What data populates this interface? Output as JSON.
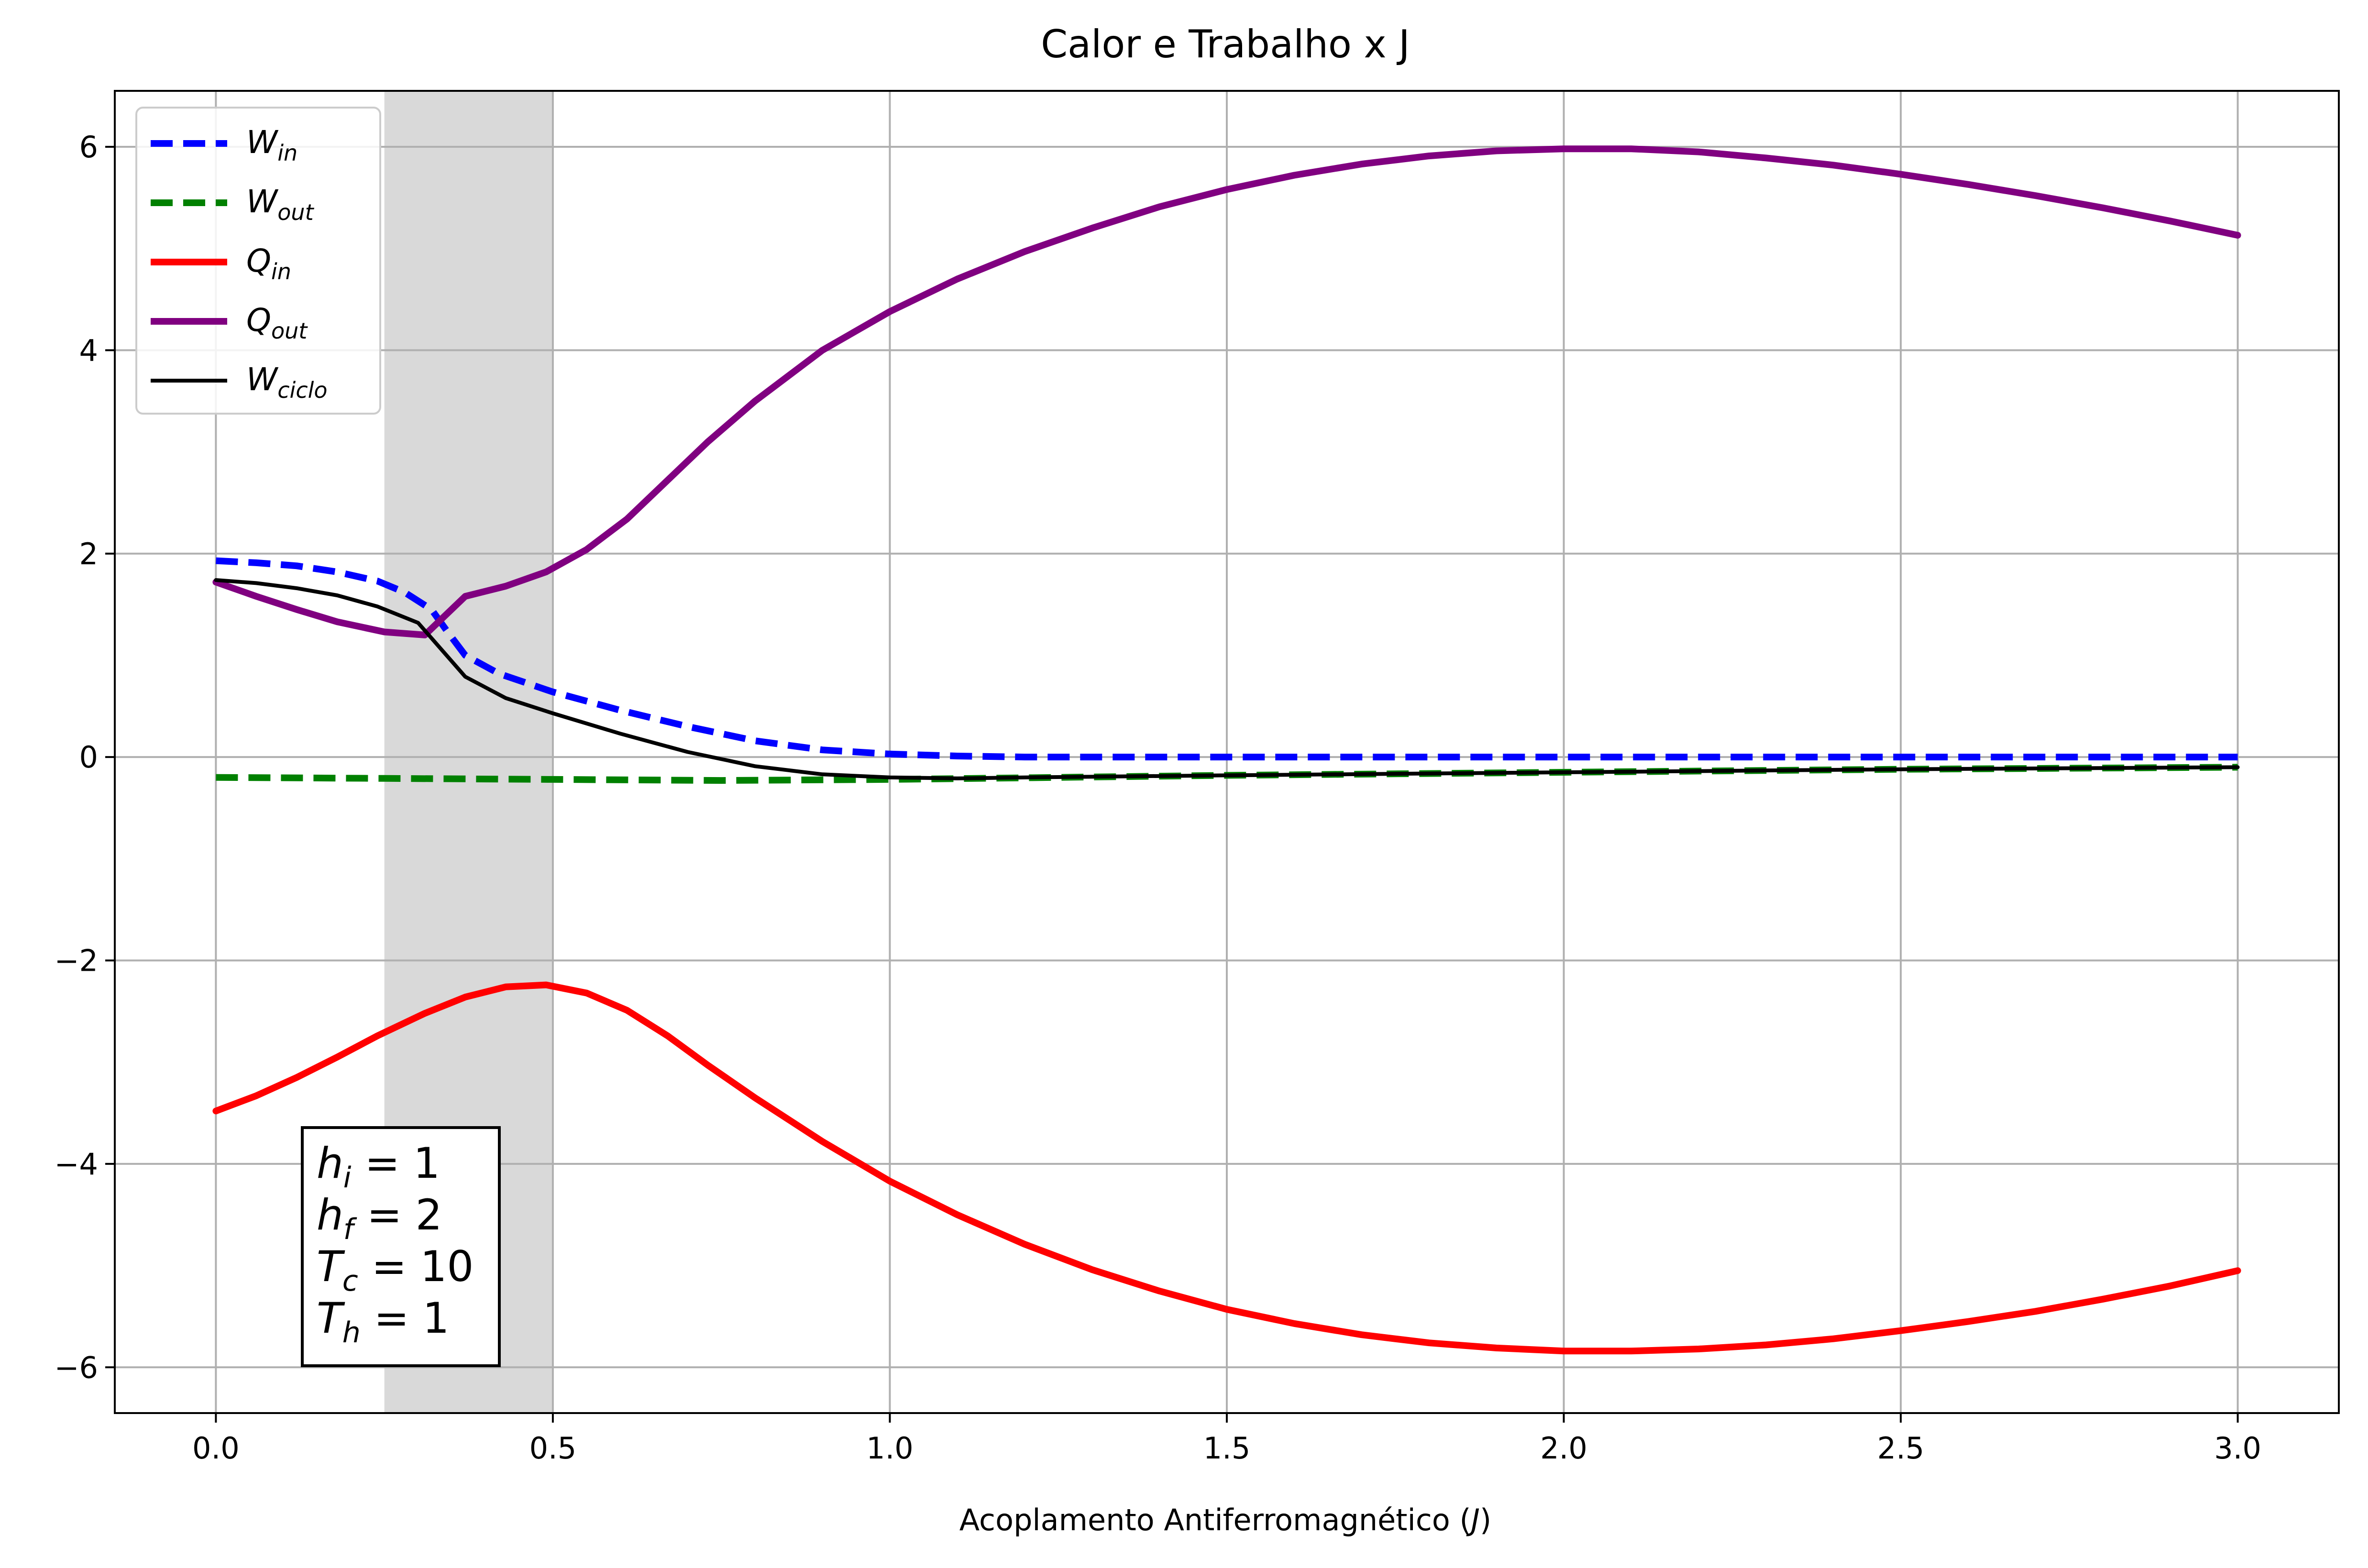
{
  "chart_data": {
    "type": "line",
    "title": "Calor e Trabalho x J",
    "xlabel": "Acoplamento Antiferromagnético (J)",
    "xlabel_parts": {
      "prefix": "Acoplamento Antiferromagnético (",
      "var": "J",
      "suffix": ")"
    },
    "ylabel": "",
    "xlim": [
      -0.15,
      3.15
    ],
    "ylim": [
      -6.45,
      6.55
    ],
    "xticks": [
      0.0,
      0.5,
      1.0,
      1.5,
      2.0,
      2.5,
      3.0
    ],
    "xtick_labels": [
      "0.0",
      "0.5",
      "1.0",
      "1.5",
      "2.0",
      "2.5",
      "3.0"
    ],
    "yticks": [
      -6,
      -4,
      -2,
      0,
      2,
      4,
      6
    ],
    "ytick_labels": [
      "−6",
      "−4",
      "−2",
      "0",
      "2",
      "4",
      "6"
    ],
    "grid": true,
    "legend_position": "top-left",
    "shaded_region": {
      "x_from": 0.25,
      "x_to": 0.5,
      "color": "#d9d9d9"
    },
    "series": [
      {
        "name": "W_in",
        "label_main": "W",
        "label_sub": "in",
        "color": "#0000ff",
        "style": "dashed",
        "width": "thick",
        "points": [
          [
            0,
            1.93
          ],
          [
            0.06,
            1.91
          ],
          [
            0.12,
            1.88
          ],
          [
            0.18,
            1.82
          ],
          [
            0.24,
            1.73
          ],
          [
            0.28,
            1.62
          ],
          [
            0.32,
            1.45
          ],
          [
            0.345,
            1.22
          ],
          [
            0.37,
            1.0
          ],
          [
            0.42,
            0.82
          ],
          [
            0.5,
            0.64
          ],
          [
            0.6,
            0.46
          ],
          [
            0.7,
            0.3
          ],
          [
            0.8,
            0.16
          ],
          [
            0.9,
            0.07
          ],
          [
            1.0,
            0.03
          ],
          [
            1.1,
            0.01
          ],
          [
            1.2,
            0.0
          ],
          [
            1.5,
            0.0
          ],
          [
            2.0,
            0.0
          ],
          [
            2.5,
            0.0
          ],
          [
            3.0,
            0.0
          ]
        ]
      },
      {
        "name": "W_out",
        "label_main": "W",
        "label_sub": "out",
        "color": "#008000",
        "style": "dashed",
        "width": "thick",
        "points": [
          [
            0,
            -0.2
          ],
          [
            0.25,
            -0.21
          ],
          [
            0.5,
            -0.22
          ],
          [
            0.75,
            -0.23
          ],
          [
            1.0,
            -0.22
          ],
          [
            1.25,
            -0.2
          ],
          [
            1.5,
            -0.18
          ],
          [
            2.0,
            -0.15
          ],
          [
            2.5,
            -0.12
          ],
          [
            3.0,
            -0.1
          ]
        ]
      },
      {
        "name": "Q_in",
        "label_main": "Q",
        "label_sub": "in",
        "color": "#ff0000",
        "style": "solid",
        "width": "thick",
        "points": [
          [
            0,
            -3.48
          ],
          [
            0.06,
            -3.33
          ],
          [
            0.12,
            -3.15
          ],
          [
            0.18,
            -2.95
          ],
          [
            0.24,
            -2.74
          ],
          [
            0.31,
            -2.52
          ],
          [
            0.37,
            -2.36
          ],
          [
            0.43,
            -2.26
          ],
          [
            0.49,
            -2.24
          ],
          [
            0.55,
            -2.32
          ],
          [
            0.61,
            -2.49
          ],
          [
            0.67,
            -2.74
          ],
          [
            0.73,
            -3.03
          ],
          [
            0.8,
            -3.35
          ],
          [
            0.9,
            -3.78
          ],
          [
            1.0,
            -4.17
          ],
          [
            1.1,
            -4.5
          ],
          [
            1.2,
            -4.79
          ],
          [
            1.3,
            -5.04
          ],
          [
            1.4,
            -5.25
          ],
          [
            1.5,
            -5.43
          ],
          [
            1.6,
            -5.57
          ],
          [
            1.7,
            -5.68
          ],
          [
            1.8,
            -5.76
          ],
          [
            1.9,
            -5.81
          ],
          [
            2.0,
            -5.84
          ],
          [
            2.1,
            -5.84
          ],
          [
            2.2,
            -5.82
          ],
          [
            2.3,
            -5.78
          ],
          [
            2.4,
            -5.72
          ],
          [
            2.5,
            -5.64
          ],
          [
            2.6,
            -5.55
          ],
          [
            2.7,
            -5.45
          ],
          [
            2.8,
            -5.33
          ],
          [
            2.9,
            -5.2
          ],
          [
            3.0,
            -5.05
          ]
        ]
      },
      {
        "name": "Q_out",
        "label_main": "Q",
        "label_sub": "out",
        "color": "#800080",
        "style": "solid",
        "width": "thick",
        "points": [
          [
            0,
            1.72
          ],
          [
            0.06,
            1.58
          ],
          [
            0.12,
            1.45
          ],
          [
            0.18,
            1.33
          ],
          [
            0.25,
            1.23
          ],
          [
            0.31,
            1.2
          ],
          [
            0.37,
            1.58
          ],
          [
            0.43,
            1.68
          ],
          [
            0.49,
            1.82
          ],
          [
            0.55,
            2.04
          ],
          [
            0.61,
            2.34
          ],
          [
            0.67,
            2.72
          ],
          [
            0.73,
            3.1
          ],
          [
            0.8,
            3.5
          ],
          [
            0.9,
            4.0
          ],
          [
            1.0,
            4.38
          ],
          [
            1.1,
            4.7
          ],
          [
            1.2,
            4.97
          ],
          [
            1.3,
            5.2
          ],
          [
            1.4,
            5.41
          ],
          [
            1.5,
            5.58
          ],
          [
            1.6,
            5.72
          ],
          [
            1.7,
            5.83
          ],
          [
            1.8,
            5.91
          ],
          [
            1.9,
            5.96
          ],
          [
            2.0,
            5.98
          ],
          [
            2.1,
            5.98
          ],
          [
            2.2,
            5.95
          ],
          [
            2.3,
            5.89
          ],
          [
            2.4,
            5.82
          ],
          [
            2.5,
            5.73
          ],
          [
            2.6,
            5.63
          ],
          [
            2.7,
            5.52
          ],
          [
            2.8,
            5.4
          ],
          [
            2.9,
            5.27
          ],
          [
            3.0,
            5.13
          ]
        ]
      },
      {
        "name": "W_ciclo",
        "label_main": "W",
        "label_sub": "ciclo",
        "color": "#000000",
        "style": "solid",
        "width": "thin",
        "points": [
          [
            0,
            1.74
          ],
          [
            0.06,
            1.71
          ],
          [
            0.12,
            1.66
          ],
          [
            0.18,
            1.59
          ],
          [
            0.24,
            1.48
          ],
          [
            0.3,
            1.32
          ],
          [
            0.37,
            0.79
          ],
          [
            0.43,
            0.58
          ],
          [
            0.5,
            0.43
          ],
          [
            0.6,
            0.23
          ],
          [
            0.7,
            0.05
          ],
          [
            0.8,
            -0.09
          ],
          [
            0.9,
            -0.17
          ],
          [
            1.0,
            -0.2
          ],
          [
            1.1,
            -0.21
          ],
          [
            1.2,
            -0.2
          ],
          [
            1.5,
            -0.18
          ],
          [
            2.0,
            -0.15
          ],
          [
            2.5,
            -0.12
          ],
          [
            3.0,
            -0.1
          ]
        ]
      }
    ],
    "annotation_box": {
      "lines": [
        {
          "main": "h",
          "sub": "i",
          "value": "1"
        },
        {
          "main": "h",
          "sub": "f",
          "value": "2"
        },
        {
          "main": "T",
          "sub": "c",
          "value": "10"
        },
        {
          "main": "T",
          "sub": "h",
          "value": "1"
        }
      ]
    }
  }
}
